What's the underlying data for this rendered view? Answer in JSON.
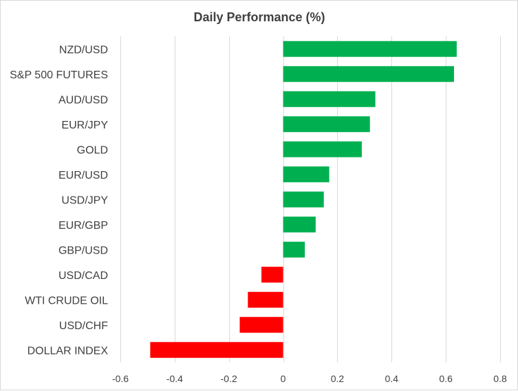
{
  "chart_data": {
    "type": "bar",
    "orientation": "horizontal",
    "title": "Daily Performance  (%)",
    "xlabel": "",
    "ylabel": "",
    "categories": [
      "NZD/USD",
      "S&P 500 FUTURES",
      "AUD/USD",
      "EUR/JPY",
      "GOLD",
      "EUR/USD",
      "USD/JPY",
      "EUR/GBP",
      "GBP/USD",
      "USD/CAD",
      "WTI CRUDE OIL",
      "USD/CHF",
      "DOLLAR INDEX"
    ],
    "values": [
      0.64,
      0.63,
      0.34,
      0.32,
      0.29,
      0.17,
      0.15,
      0.12,
      0.08,
      -0.08,
      -0.13,
      -0.16,
      -0.49
    ],
    "xlim": [
      -0.6,
      0.8
    ],
    "xticks": [
      -0.6,
      -0.4,
      -0.2,
      0,
      0.2,
      0.4,
      0.6,
      0.8
    ],
    "xtick_labels": [
      "-0.6",
      "-0.4",
      "-0.2",
      "0",
      "0.2",
      "0.4",
      "0.6",
      "0.8"
    ],
    "grid": "vertical",
    "legend": "none",
    "colors": {
      "positive": "#00b050",
      "negative": "#ff0000",
      "gridline": "#d9d9d9",
      "text": "#404040"
    }
  }
}
